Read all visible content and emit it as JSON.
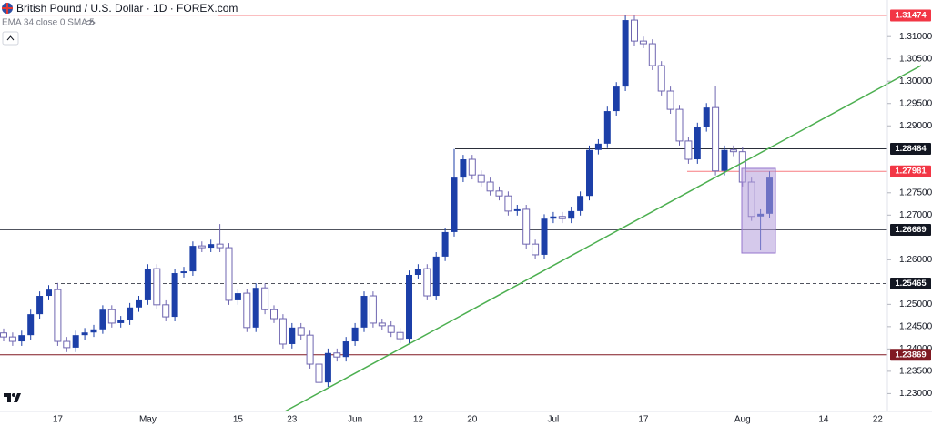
{
  "chart_data": {
    "type": "candlestick",
    "title": "British Pound / U.S. Dollar · 1D · FOREX.com",
    "subtitle": "EMA 34 close 0 SMA 5",
    "up_color": "#1c3fa8",
    "down_color": "#ffffff",
    "down_outline": "#6f66b0",
    "ylim": [
      1.226,
      1.3182
    ],
    "yticks": [
      {
        "value": 1.31,
        "label": "1.31000"
      },
      {
        "value": 1.305,
        "label": "1.30500"
      },
      {
        "value": 1.3,
        "label": "1.30000"
      },
      {
        "value": 1.295,
        "label": "1.29500"
      },
      {
        "value": 1.29,
        "label": "1.29000"
      },
      {
        "value": 1.275,
        "label": "1.27500"
      },
      {
        "value": 1.27,
        "label": "1.27000"
      },
      {
        "value": 1.26,
        "label": "1.26000"
      },
      {
        "value": 1.25,
        "label": "1.25000"
      },
      {
        "value": 1.245,
        "label": "1.24500"
      },
      {
        "value": 1.24,
        "label": "1.24000"
      },
      {
        "value": 1.235,
        "label": "1.23500"
      },
      {
        "value": 1.23,
        "label": "1.23000"
      }
    ],
    "levels": [
      {
        "value": 1.31474,
        "color": "#f77c80",
        "label_color": "#f23645",
        "dashed": false
      },
      {
        "value": 1.28484,
        "color": "#2a2e39",
        "label_color": "#131722",
        "dashed": false
      },
      {
        "value": 1.27981,
        "color": "#f77c80",
        "label_color": "#f23645",
        "dashed": false
      },
      {
        "value": 1.26669,
        "color": "#50535e",
        "label_color": "#131722",
        "dashed": false
      },
      {
        "value": 1.25465,
        "color": "#50535e",
        "label_color": "#131722",
        "dashed": true
      },
      {
        "value": 1.23869,
        "color": "#801922",
        "label_color": "#801922",
        "dashed": false
      }
    ],
    "categories": [
      null,
      null,
      null,
      null,
      null,
      null,
      "17",
      null,
      null,
      null,
      null,
      null,
      null,
      null,
      null,
      null,
      "May",
      null,
      null,
      null,
      null,
      null,
      null,
      null,
      null,
      null,
      "15",
      null,
      null,
      null,
      null,
      null,
      "23",
      null,
      null,
      null,
      null,
      null,
      null,
      "Jun",
      null,
      null,
      null,
      null,
      null,
      null,
      "12",
      null,
      null,
      null,
      null,
      null,
      "20",
      null,
      null,
      null,
      null,
      null,
      null,
      null,
      null,
      "Jul",
      null,
      null,
      null,
      null,
      null,
      null,
      null,
      null,
      null,
      "17",
      null,
      null,
      null,
      null,
      null,
      null,
      null,
      null,
      null,
      null,
      "Aug",
      null,
      null,
      null,
      null,
      null,
      null,
      null,
      null,
      "14",
      null,
      null,
      null,
      null,
      null,
      "22"
    ],
    "open": [
      1.2436,
      1.2427,
      1.2417,
      1.2431,
      1.2478,
      1.2519,
      1.2533,
      1.2417,
      1.2403,
      1.2431,
      1.2437,
      1.2444,
      1.2488,
      1.2458,
      1.2464,
      1.2493,
      1.2509,
      1.258,
      1.2499,
      1.2472,
      1.257,
      1.2574,
      1.2631,
      1.2627,
      1.2635,
      1.2627,
      1.2509,
      1.2525,
      1.2448,
      1.2537,
      1.2488,
      1.2468,
      1.2411,
      1.2448,
      1.2431,
      1.2366,
      1.2325,
      1.2391,
      1.2382,
      1.2417,
      1.2448,
      1.2519,
      1.2458,
      1.2452,
      1.2437,
      1.2423,
      1.2566,
      1.258,
      1.2519,
      1.2607,
      1.2662,
      1.2784,
      1.2825,
      1.279,
      1.2774,
      1.2754,
      1.2743,
      1.2709,
      1.2713,
      1.2635,
      1.2611,
      1.2692,
      1.2697,
      1.2692,
      1.2709,
      1.2743,
      1.2846,
      1.286,
      1.2933,
      1.2988,
      1.3137,
      1.309,
      1.3084,
      1.3035,
      1.2978,
      1.2937,
      1.2866,
      1.2825,
      1.2897,
      1.2941,
      1.2799,
      1.2846,
      1.2842,
      1.2774,
      1.2697,
      1.2703,
      null,
      null,
      null,
      null,
      null,
      null,
      null,
      null,
      null,
      null,
      null,
      null
    ],
    "high": [
      1.2446,
      1.2437,
      1.2441,
      1.2488,
      1.2529,
      1.2543,
      1.2548,
      1.2427,
      1.2441,
      1.2447,
      1.2454,
      1.2498,
      1.2498,
      1.2474,
      1.2503,
      1.2519,
      1.259,
      1.259,
      1.2509,
      1.258,
      1.2584,
      1.2641,
      1.2641,
      1.2645,
      1.268,
      1.2637,
      1.2535,
      1.2535,
      1.2547,
      1.2547,
      1.2498,
      1.2478,
      1.2458,
      1.2458,
      1.2441,
      1.2376,
      1.2401,
      1.2401,
      1.2427,
      1.2458,
      1.2529,
      1.2529,
      1.2468,
      1.2462,
      1.2447,
      1.2576,
      1.259,
      1.259,
      1.2617,
      1.2672,
      1.2848,
      1.2835,
      1.2835,
      1.28,
      1.2784,
      1.2764,
      1.2753,
      1.2723,
      1.2723,
      1.2645,
      1.2702,
      1.2707,
      1.2707,
      1.2719,
      1.2753,
      1.2856,
      1.287,
      1.2943,
      1.2998,
      1.3147,
      1.3147,
      1.31,
      1.3094,
      1.3045,
      1.2988,
      1.2947,
      1.2876,
      1.2907,
      1.2951,
      1.299,
      1.2856,
      1.2856,
      1.2852,
      1.2784,
      1.2713,
      1.2798,
      null,
      null,
      null,
      null,
      null,
      null,
      null,
      null,
      null,
      null,
      null,
      null
    ],
    "low": [
      1.2417,
      1.2407,
      1.2407,
      1.2421,
      1.2468,
      1.2509,
      1.2407,
      1.2393,
      1.2393,
      1.2421,
      1.2427,
      1.2434,
      1.2448,
      1.2448,
      1.2454,
      1.2483,
      1.2499,
      1.2489,
      1.2462,
      1.2462,
      1.256,
      1.2564,
      1.2617,
      1.2617,
      1.2617,
      1.2499,
      1.2499,
      1.2438,
      1.2438,
      1.2478,
      1.2458,
      1.2401,
      1.2401,
      1.2421,
      1.2356,
      1.231,
      1.2315,
      1.2372,
      1.2372,
      1.2407,
      1.2438,
      1.2448,
      1.2442,
      1.2427,
      1.2413,
      1.2413,
      1.2556,
      1.2509,
      1.2509,
      1.2597,
      1.2652,
      1.2774,
      1.278,
      1.2764,
      1.2744,
      1.2733,
      1.2699,
      1.2699,
      1.2625,
      1.2601,
      1.2601,
      1.2682,
      1.2682,
      1.2682,
      1.2699,
      1.2733,
      1.2836,
      1.285,
      1.2923,
      1.2978,
      1.308,
      1.3074,
      1.3025,
      1.2968,
      1.2927,
      1.2856,
      1.2815,
      1.2815,
      1.2887,
      1.2789,
      1.2789,
      1.2832,
      1.2764,
      1.2687,
      1.2621,
      1.2693,
      null,
      null,
      null,
      null,
      null,
      null,
      null,
      null,
      null,
      null,
      null,
      null
    ],
    "close": [
      1.2427,
      1.2417,
      1.2431,
      1.2478,
      1.2519,
      1.2533,
      1.2417,
      1.2403,
      1.2431,
      1.2437,
      1.2444,
      1.2488,
      1.2458,
      1.2464,
      1.2493,
      1.2509,
      1.258,
      1.2499,
      1.2472,
      1.257,
      1.2574,
      1.2631,
      1.2627,
      1.2635,
      1.2627,
      1.2509,
      1.2525,
      1.2448,
      1.2537,
      1.2488,
      1.2468,
      1.2411,
      1.2448,
      1.2431,
      1.2366,
      1.2325,
      1.2391,
      1.2382,
      1.2417,
      1.2448,
      1.2519,
      1.2458,
      1.2452,
      1.2437,
      1.2423,
      1.2566,
      1.258,
      1.2519,
      1.2607,
      1.2662,
      1.2784,
      1.2825,
      1.279,
      1.2774,
      1.2754,
      1.2743,
      1.2709,
      1.2713,
      1.2635,
      1.2611,
      1.2692,
      1.2697,
      1.2692,
      1.2709,
      1.2743,
      1.2846,
      1.286,
      1.2933,
      1.2988,
      1.3137,
      1.309,
      1.3084,
      1.3035,
      1.2978,
      1.2937,
      1.2866,
      1.2825,
      1.2897,
      1.2941,
      1.2799,
      1.2846,
      1.2842,
      1.2774,
      1.2697,
      1.2703,
      1.2784,
      null,
      null,
      null,
      null,
      null,
      null,
      null,
      null,
      null,
      null,
      null,
      null
    ]
  }
}
